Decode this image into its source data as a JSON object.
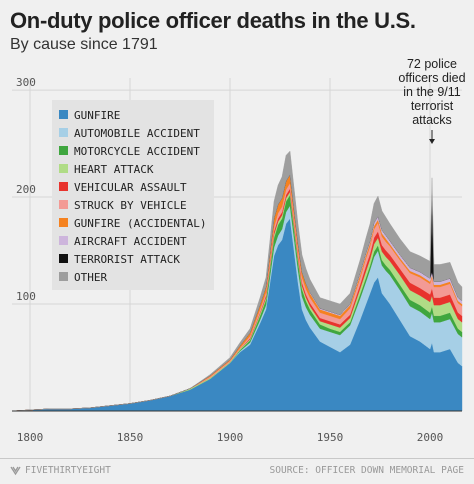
{
  "chart_data": {
    "type": "area",
    "stacked": true,
    "title": "On-duty police officer deaths in the U.S.",
    "subtitle": "By cause since 1791",
    "xlim": [
      1791,
      2016
    ],
    "ylim": [
      0,
      330
    ],
    "x_ticks": [
      1800,
      1850,
      1900,
      1950,
      2000
    ],
    "y_ticks": [
      100,
      200,
      300
    ],
    "grid": true,
    "legend_position": "top-left",
    "x": [
      1791,
      1800,
      1810,
      1820,
      1830,
      1840,
      1850,
      1860,
      1870,
      1880,
      1890,
      1900,
      1905,
      1910,
      1915,
      1918,
      1920,
      1922,
      1924,
      1926,
      1928,
      1930,
      1932,
      1934,
      1936,
      1938,
      1940,
      1945,
      1950,
      1955,
      1960,
      1965,
      1968,
      1970,
      1972,
      1974,
      1976,
      1978,
      1980,
      1985,
      1990,
      1995,
      2000,
      2001,
      2002,
      2005,
      2010,
      2014,
      2016
    ],
    "series": [
      {
        "name": "GUNFIRE",
        "color": "#3a88c2",
        "values": [
          0,
          1,
          2,
          2,
          3,
          5,
          7,
          10,
          14,
          20,
          30,
          45,
          55,
          62,
          82,
          95,
          120,
          145,
          155,
          160,
          175,
          180,
          150,
          120,
          95,
          85,
          78,
          65,
          60,
          55,
          62,
          85,
          100,
          110,
          120,
          125,
          110,
          105,
          100,
          85,
          70,
          65,
          58,
          64,
          55,
          55,
          58,
          45,
          42
        ]
      },
      {
        "name": "AUTOMOBILE ACCIDENT",
        "color": "#a6cfe6",
        "values": [
          0,
          0,
          0,
          0,
          0,
          0,
          0,
          0,
          0,
          0,
          0,
          0,
          1,
          2,
          3,
          4,
          6,
          8,
          9,
          10,
          11,
          12,
          12,
          12,
          12,
          12,
          12,
          12,
          14,
          16,
          18,
          20,
          21,
          22,
          24,
          25,
          26,
          26,
          27,
          28,
          28,
          28,
          28,
          28,
          28,
          28,
          28,
          27,
          27
        ]
      },
      {
        "name": "MOTORCYCLE ACCIDENT",
        "color": "#3fa63f",
        "values": [
          0,
          0,
          0,
          0,
          0,
          0,
          0,
          0,
          0,
          0,
          0,
          0,
          1,
          2,
          4,
          5,
          7,
          9,
          10,
          10,
          10,
          10,
          9,
          8,
          7,
          6,
          5,
          4,
          3,
          3,
          3,
          4,
          4,
          4,
          5,
          5,
          5,
          5,
          5,
          5,
          6,
          6,
          6,
          6,
          6,
          6,
          6,
          5,
          5
        ]
      },
      {
        "name": "HEART ATTACK",
        "color": "#b0dc86",
        "values": [
          0,
          0,
          0,
          0,
          0,
          0,
          0,
          0,
          0,
          1,
          1,
          1,
          1,
          1,
          2,
          2,
          3,
          3,
          3,
          3,
          3,
          3,
          3,
          3,
          3,
          3,
          3,
          3,
          4,
          4,
          4,
          5,
          6,
          6,
          7,
          7,
          8,
          8,
          8,
          9,
          9,
          9,
          10,
          10,
          10,
          10,
          10,
          9,
          9
        ]
      },
      {
        "name": "VEHICULAR ASSAULT",
        "color": "#e8332d",
        "values": [
          0,
          0,
          0,
          0,
          0,
          0,
          0,
          0,
          0,
          0,
          0,
          0,
          0,
          1,
          1,
          2,
          2,
          3,
          3,
          3,
          3,
          3,
          3,
          3,
          3,
          3,
          3,
          3,
          3,
          3,
          3,
          4,
          5,
          5,
          6,
          6,
          6,
          6,
          6,
          6,
          7,
          7,
          7,
          7,
          7,
          7,
          7,
          6,
          6
        ]
      },
      {
        "name": "STRUCK BY VEHICLE",
        "color": "#f39a95",
        "values": [
          0,
          0,
          0,
          0,
          0,
          0,
          0,
          0,
          0,
          0,
          1,
          1,
          1,
          2,
          3,
          3,
          4,
          4,
          5,
          5,
          5,
          5,
          5,
          5,
          5,
          5,
          5,
          5,
          5,
          5,
          6,
          6,
          7,
          7,
          8,
          8,
          8,
          8,
          8,
          8,
          9,
          10,
          10,
          10,
          10,
          10,
          10,
          9,
          9
        ]
      },
      {
        "name": "GUNFIRE (ACCIDENTAL)",
        "color": "#f58220",
        "values": [
          0,
          0,
          0,
          0,
          0,
          0,
          0,
          0,
          0,
          0,
          1,
          1,
          2,
          3,
          4,
          5,
          6,
          8,
          8,
          8,
          8,
          8,
          7,
          6,
          5,
          5,
          4,
          3,
          3,
          3,
          3,
          3,
          3,
          3,
          3,
          3,
          3,
          3,
          2,
          2,
          2,
          2,
          2,
          2,
          2,
          2,
          2,
          2,
          2
        ]
      },
      {
        "name": "AIRCRAFT ACCIDENT",
        "color": "#cdb5dc",
        "values": [
          0,
          0,
          0,
          0,
          0,
          0,
          0,
          0,
          0,
          0,
          0,
          0,
          0,
          0,
          0,
          0,
          0,
          0,
          0,
          0,
          0,
          0,
          0,
          0,
          0,
          0,
          1,
          1,
          1,
          1,
          1,
          2,
          2,
          2,
          3,
          3,
          3,
          3,
          3,
          3,
          3,
          3,
          3,
          3,
          3,
          3,
          3,
          3,
          3
        ]
      },
      {
        "name": "TERRORIST ATTACK",
        "color": "#111111",
        "values": [
          0,
          0,
          0,
          0,
          0,
          0,
          0,
          0,
          0,
          0,
          0,
          0,
          0,
          0,
          0,
          0,
          0,
          0,
          0,
          0,
          0,
          0,
          0,
          0,
          0,
          0,
          0,
          0,
          0,
          0,
          0,
          0,
          0,
          0,
          0,
          0,
          0,
          0,
          0,
          0,
          0,
          0,
          0,
          72,
          0,
          0,
          0,
          0,
          0
        ]
      },
      {
        "name": "OTHER",
        "color": "#9e9e9e",
        "values": [
          0,
          0,
          0,
          0,
          0,
          0,
          0,
          0,
          0,
          0,
          1,
          2,
          3,
          4,
          7,
          9,
          12,
          16,
          18,
          20,
          24,
          22,
          20,
          18,
          16,
          14,
          12,
          10,
          10,
          10,
          10,
          12,
          14,
          16,
          18,
          19,
          18,
          17,
          16,
          15,
          15,
          15,
          16,
          16,
          16,
          16,
          15,
          14,
          13
        ]
      }
    ],
    "annotations": [
      {
        "text": "72 police officers died in the 9/11 terrorist attacks",
        "lines": [
          "72 police",
          "officers died",
          "in the 9/11",
          "terrorist",
          "attacks"
        ],
        "x": 2001
      }
    ]
  },
  "footer": {
    "brand": "FIVETHIRTYEIGHT",
    "source": "SOURCE: OFFICER DOWN MEMORIAL PAGE"
  },
  "colors": {
    "background": "#f0f0f0",
    "grid": "#d6d6d6",
    "legend_bg": "#e3e3e3"
  }
}
